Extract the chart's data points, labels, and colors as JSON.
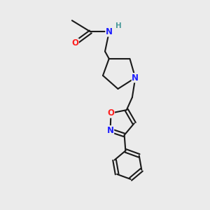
{
  "bg_color": "#ebebeb",
  "bond_color": "#1a1a1a",
  "N_color": "#2020ff",
  "O_color": "#ff2020",
  "H_color": "#4a9a9a",
  "line_width": 1.5,
  "font_size_atom": 8.5,
  "xlim": [
    0,
    10
  ],
  "ylim": [
    0,
    10
  ]
}
